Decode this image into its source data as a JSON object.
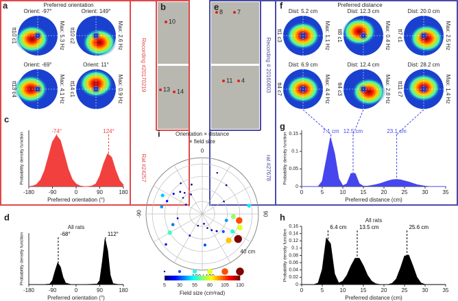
{
  "panels": {
    "a": {
      "letter": "a",
      "title": "Preferred orientation",
      "recording": "Recording #20170219",
      "rat": "Rat #24257",
      "maps": [
        {
          "title": "Orient: -97°",
          "cell": "tt10 c1",
          "max": "Max: 5.3 Hz"
        },
        {
          "title": "Orient: 149°",
          "cell": "tt10 c2",
          "max": "Max: 2.6 Hz"
        },
        {
          "title": "Orient: -69°",
          "cell": "tt13 c4",
          "max": "Max: 4.1 Hz"
        },
        {
          "title": "Orient: 11°",
          "cell": "tt14 c1",
          "max": "Max: 0.9 Hz"
        }
      ]
    },
    "b": {
      "letter": "b",
      "marks": [
        "10",
        "13",
        "14"
      ]
    },
    "e": {
      "letter": "e",
      "marks": [
        "8",
        "7",
        "11",
        "4"
      ]
    },
    "f": {
      "letter": "f",
      "title": "Preferred distance",
      "recording": "Recording # 20160803",
      "rat": "rat #27678",
      "maps": [
        {
          "title": "Dist: 5.2 cm",
          "cell": "tt1 c3",
          "max": "Max: 1.1 Hz"
        },
        {
          "title": "Dist: 12.3 cm",
          "cell": "tt8 c1",
          "max": "Max: 0.4 Hz"
        },
        {
          "title": "Dist: 20.0 cm",
          "cell": "tt7 c1",
          "max": "Max: 2.5 Hz"
        },
        {
          "title": "Dist: 6.9 cm",
          "cell": "tt4 c7",
          "max": "Max: 4.4 Hz"
        },
        {
          "title": "Dist: 12.4 cm",
          "cell": "tt4 c3",
          "max": "Max: 2.8 Hz"
        },
        {
          "title": "Dist: 28.2 cm",
          "cell": "tt11 c7",
          "max": "Max: 1.4 Hz"
        }
      ]
    }
  },
  "chart_data": [
    {
      "letter": "c",
      "type": "area",
      "color": "#f2403f",
      "x": [
        -180,
        -165,
        -150,
        -135,
        -120,
        -105,
        -90,
        -75,
        -60,
        -45,
        -30,
        -15,
        0,
        15,
        30,
        45,
        60,
        75,
        90,
        105,
        120,
        135,
        150,
        165,
        180
      ],
      "values": [
        0,
        0.01,
        0.04,
        0.13,
        0.31,
        0.59,
        0.87,
        1,
        0.9,
        0.62,
        0.34,
        0.14,
        0.05,
        0.01,
        0,
        0,
        0.01,
        0.05,
        0.2,
        0.45,
        0.64,
        0.57,
        0.32,
        0.12,
        0.03
      ],
      "xlim": [
        -180,
        180
      ],
      "xticks": [
        -180,
        -90,
        0,
        90,
        180
      ],
      "ylim": [
        0,
        1.1
      ],
      "xlabel": "Preferred orientation (°)",
      "ylabel": "Probability density function",
      "annotations": [
        {
          "x": -74,
          "label": "-74°"
        },
        {
          "x": 124,
          "label": "124°"
        }
      ]
    },
    {
      "letter": "g",
      "type": "area",
      "color": "#4646ee",
      "x": [
        0,
        1,
        2,
        3,
        4,
        5,
        6,
        7,
        8,
        9,
        10,
        11,
        12,
        13,
        14,
        15,
        16,
        17,
        18,
        19,
        20,
        21,
        22,
        23,
        24,
        25,
        26,
        27,
        28,
        29,
        30,
        31,
        32,
        33,
        34,
        35
      ],
      "values": [
        0,
        0,
        0,
        0,
        0,
        0.015,
        0.076,
        0.139,
        0.094,
        0.023,
        0.002,
        0.008,
        0.037,
        0.037,
        0.008,
        0.001,
        0.001,
        0.003,
        0.005,
        0.008,
        0.012,
        0.016,
        0.019,
        0.02,
        0.019,
        0.016,
        0.013,
        0.009,
        0.005,
        0.003,
        0.001,
        0,
        0,
        0,
        0,
        0
      ],
      "xlim": [
        0,
        35
      ],
      "xticks": [
        0,
        5,
        10,
        15,
        20,
        25,
        30,
        35
      ],
      "ylim": [
        0,
        0.16
      ],
      "yticks": [
        0,
        0.05,
        0.1,
        0.15
      ],
      "xlabel": "Preferred distance (cm)",
      "ylabel": "Probability density function",
      "annotations": [
        {
          "x": 7.1,
          "label": "7.1 cm"
        },
        {
          "x": 12.5,
          "label": "12.5 cm"
        },
        {
          "x": 23.1,
          "label": "23.1 cm"
        }
      ]
    },
    {
      "letter": "d",
      "type": "area",
      "color": "#000000",
      "title": "All rats",
      "x": [
        -180,
        -120,
        -100,
        -90,
        -80,
        -70,
        -60,
        -50,
        -40,
        -20,
        0,
        40,
        80,
        90,
        100,
        110,
        120,
        130,
        140,
        160,
        180
      ],
      "values": [
        0,
        0,
        0.01,
        0.08,
        0.27,
        0.44,
        0.36,
        0.15,
        0.03,
        0,
        0,
        0,
        0.01,
        0.08,
        0.46,
        0.93,
        0.69,
        0.19,
        0.02,
        0,
        0
      ],
      "xlim": [
        -180,
        180
      ],
      "xticks": [
        -180,
        -90,
        0,
        90,
        180
      ],
      "ylim": [
        0,
        1.05
      ],
      "xlabel": "Preferred orientation (°)",
      "ylabel": "Probability density function",
      "annotations": [
        {
          "x": -68,
          "label": "-68°"
        },
        {
          "x": 112,
          "label": "112°"
        }
      ]
    },
    {
      "letter": "h",
      "type": "area",
      "color": "#000000",
      "title": "All rats",
      "x": [
        0,
        1,
        2,
        3,
        4,
        5,
        6,
        7,
        8,
        9,
        10,
        11,
        12,
        13,
        14,
        15,
        16,
        17,
        18,
        19,
        20,
        21,
        22,
        23,
        24,
        25,
        26,
        27,
        28,
        29,
        30,
        31,
        32,
        33,
        34,
        35
      ],
      "values": [
        0,
        0,
        0,
        0,
        0.004,
        0.041,
        0.127,
        0.112,
        0.029,
        0.004,
        0.009,
        0.025,
        0.051,
        0.072,
        0.072,
        0.051,
        0.025,
        0.009,
        0.002,
        0,
        0,
        0,
        0.003,
        0.015,
        0.044,
        0.078,
        0.081,
        0.052,
        0.02,
        0.004,
        0,
        0,
        0,
        0,
        0,
        0
      ],
      "xlim": [
        0,
        35
      ],
      "xticks": [
        0,
        5,
        10,
        15,
        20,
        25,
        30,
        35
      ],
      "ylim": [
        0,
        0.16
      ],
      "yticks": [
        0,
        0.02,
        0.04,
        0.06,
        0.08,
        0.1,
        0.12,
        0.14,
        0.16
      ],
      "xlabel": "Preferred distance (cm)",
      "ylabel": "Probability density function",
      "annotations": [
        {
          "x": 6.4,
          "label": "6.4 cm"
        },
        {
          "x": 13.5,
          "label": "13.5 cm"
        },
        {
          "x": 25.6,
          "label": "25.6 cm"
        }
      ]
    },
    {
      "letter": "i",
      "type": "polar",
      "title": "Orientation × distance",
      "subtitle": "× field size",
      "rlim": [
        0,
        45
      ],
      "rgrid": [
        10,
        20,
        30,
        40
      ],
      "rlabel": {
        "value": 40,
        "label": "40 cm"
      },
      "thetagrid": [
        0,
        30,
        60,
        90,
        120,
        150,
        180,
        210,
        240,
        270,
        300,
        330
      ],
      "thetaticks": [
        0,
        90,
        -90,
        {
          "value": 180,
          "label": "-180 | 180"
        }
      ],
      "theta": [
        -30,
        -40,
        -45,
        -50,
        -60,
        -55,
        -70,
        -80,
        -35,
        -20,
        -65,
        -100,
        -110,
        -120,
        -150,
        -160,
        170,
        160,
        150,
        140,
        130,
        120,
        110,
        100,
        125,
        95,
        105,
        135,
        60,
        40,
        20,
        80,
        -130,
        175
      ],
      "r": [
        18,
        22,
        25,
        20,
        15,
        28,
        30,
        33,
        30,
        25,
        35,
        20,
        25,
        30,
        20,
        10,
        8,
        12,
        15,
        18,
        22,
        28,
        32,
        30,
        35,
        25,
        20,
        30,
        20,
        30,
        35,
        38,
        38,
        25
      ],
      "size": [
        10,
        8,
        12,
        6,
        9,
        15,
        20,
        40,
        7,
        10,
        45,
        10,
        35,
        60,
        12,
        8,
        10,
        9,
        11,
        14,
        30,
        55,
        80,
        105,
        130,
        70,
        40,
        90,
        8,
        10,
        6,
        50,
        20,
        30
      ],
      "clim": [
        5,
        130
      ],
      "cticks": [
        5,
        30,
        55,
        80,
        105,
        130
      ],
      "clabel": "Field size (cm²rad)"
    }
  ]
}
